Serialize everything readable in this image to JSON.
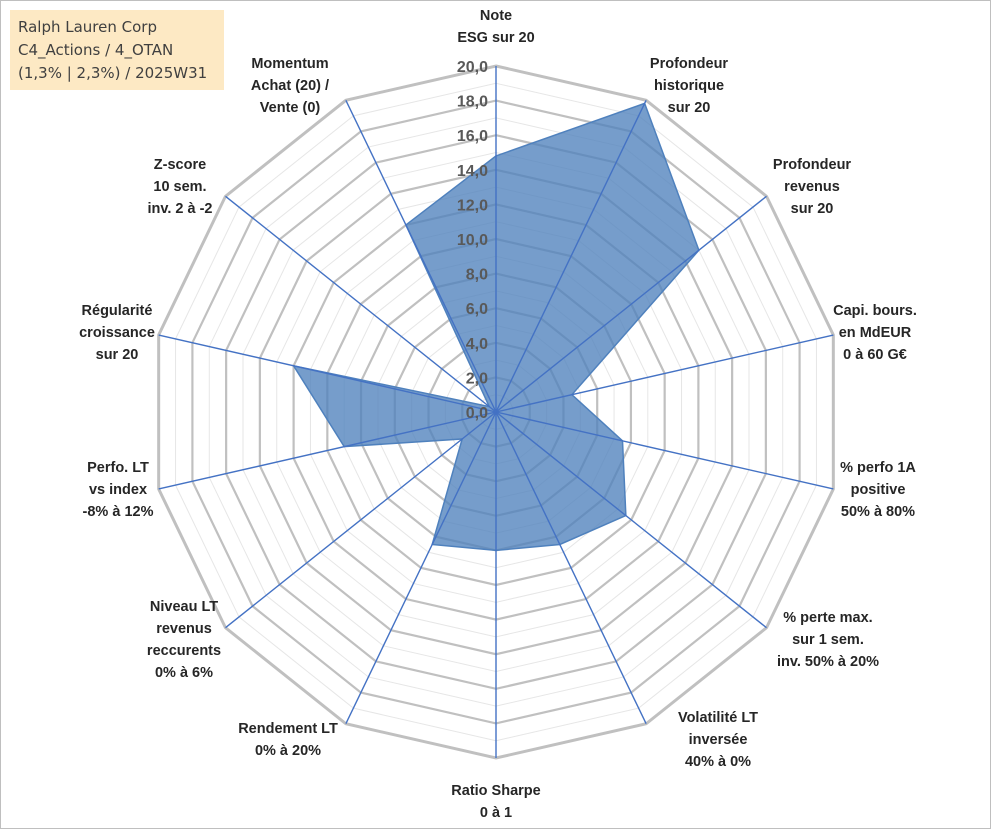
{
  "title_box": {
    "lines": [
      "Ralph Lauren Corp",
      "C4_Actions / 4_OTAN",
      "(1,3% | 2,3%) / 2025W31"
    ],
    "background": "#fde9c4"
  },
  "chart_data": {
    "type": "radar",
    "title": "",
    "axes": [
      [
        "Note",
        "ESG sur 20"
      ],
      [
        "Profondeur",
        "historique",
        "sur 20"
      ],
      [
        "Profondeur",
        "revenus",
        "sur 20"
      ],
      [
        "Capi. bours.",
        "en MdEUR",
        "0 à 60 G€"
      ],
      [
        "% perfo 1A",
        "positive",
        "50% à 80%"
      ],
      [
        "% perte max.",
        "sur 1 sem.",
        "inv. 50% à 20%"
      ],
      [
        "Volatilité LT",
        "inversée",
        "40% à 0%"
      ],
      [
        "Ratio Sharpe",
        "0 à 1"
      ],
      [
        "Rendement LT",
        "0% à 20%"
      ],
      [
        "Niveau LT",
        "revenus",
        "reccurents",
        "0% à 6%"
      ],
      [
        "Perfo. LT",
        "vs index",
        "-8% à 12%"
      ],
      [
        "Régularité",
        "croissance",
        "sur 20"
      ],
      [
        "Z-score",
        "10 sem.",
        "inv. 2 à -2"
      ],
      [
        "Momentum",
        "Achat (20) /",
        "Vente (0)"
      ]
    ],
    "series": [
      {
        "values": [
          14.8,
          19.8,
          15.0,
          4.5,
          7.5,
          9.6,
          8.5,
          8.0,
          8.5,
          2.5,
          9.0,
          12.0,
          0.5,
          12.0
        ]
      }
    ],
    "rlim": [
      0,
      20
    ],
    "tick_step": 2,
    "tick_labels": [
      "0,0",
      "2,0",
      "4,0",
      "6,0",
      "8,0",
      "10,0",
      "12,0",
      "14,0",
      "16,0",
      "18,0",
      "20,0"
    ],
    "colors": {
      "fill": "#4f81bd",
      "stroke": "#4f81bd",
      "spokes": "#4472c4",
      "major_grid": "#c0c0c0",
      "minor_grid": "#e6e6e6"
    }
  }
}
